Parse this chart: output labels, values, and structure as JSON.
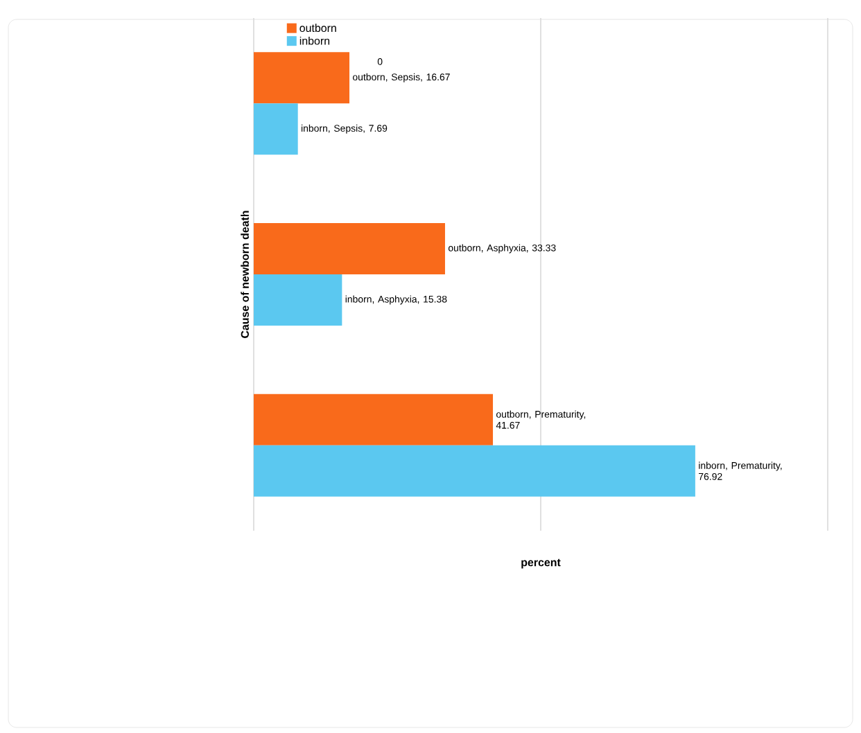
{
  "chart_data": {
    "type": "bar",
    "orientation": "horizontal",
    "xlabel": "percent",
    "ylabel": "Cause of newborn death",
    "categories": [
      null,
      null,
      null
    ],
    "series": [
      {
        "name": "outborn",
        "color": "#f96a1b",
        "values": [
          16.67,
          33.33,
          41.67
        ],
        "value_labels": [
          "outborn, Sepsis, 16.67",
          "outborn, Asphyxia, 33.33",
          "outborn, Prematurity, 41.67"
        ]
      },
      {
        "name": "inborn",
        "color": "#5bc8f0",
        "values": [
          7.69,
          15.38,
          76.92
        ],
        "value_labels": [
          "inborn, Sepsis, 7.69",
          "inborn, Asphyxia, 15.38",
          "inborn, Prematurity, 76.92"
        ]
      }
    ],
    "annotations": [
      "0"
    ],
    "xlim": [
      0,
      100
    ],
    "xticks": [
      {
        "value": 0,
        "label": null
      },
      {
        "value": 50,
        "label": null
      },
      {
        "value": 100,
        "label": null
      }
    ],
    "grid": "x",
    "legend": "top left"
  }
}
